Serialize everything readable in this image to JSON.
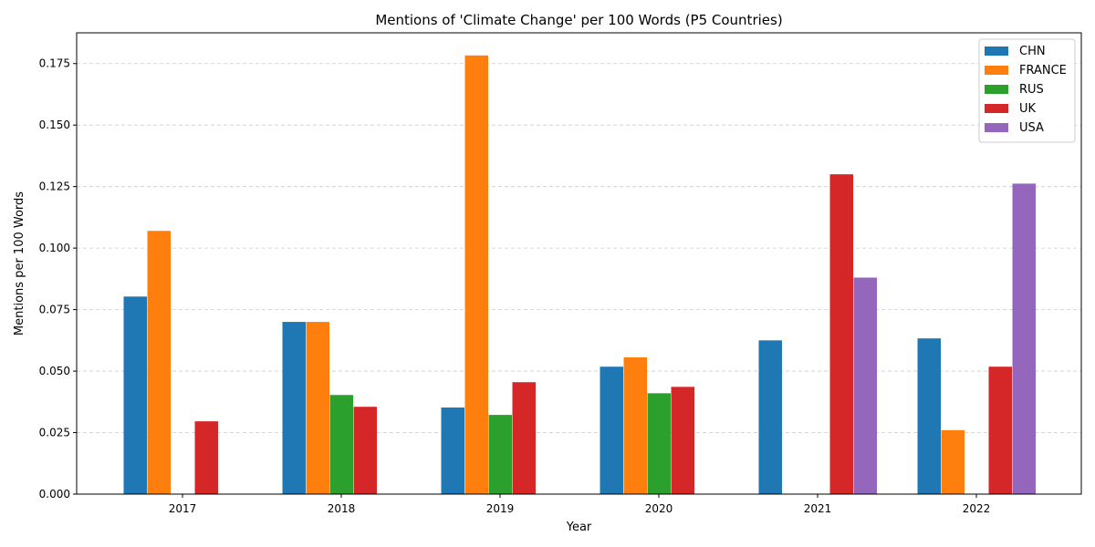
{
  "chart_data": {
    "type": "bar",
    "title": "Mentions of 'Climate Change' per 100 Words (P5 Countries)",
    "xlabel": "Year",
    "ylabel": "Mentions per 100 Words",
    "categories": [
      "2017",
      "2018",
      "2019",
      "2020",
      "2021",
      "2022"
    ],
    "ylim": [
      0,
      0.1875
    ],
    "yticks": [
      "0.000",
      "0.025",
      "0.050",
      "0.075",
      "0.100",
      "0.125",
      "0.150",
      "0.175"
    ],
    "grid": "y-dashed",
    "legend_position": "top-right",
    "series": [
      {
        "name": "CHN",
        "color": "#1f77b4",
        "values": [
          0.0803,
          0.07,
          0.0352,
          0.0518,
          0.0625,
          0.0633
        ]
      },
      {
        "name": "FRANCE",
        "color": "#ff7f0e",
        "values": [
          0.107,
          0.07,
          0.1783,
          0.0556,
          null,
          0.026
        ]
      },
      {
        "name": "RUS",
        "color": "#2ca02c",
        "values": [
          null,
          0.0403,
          0.0322,
          0.041,
          null,
          null
        ]
      },
      {
        "name": "UK",
        "color": "#d62728",
        "values": [
          0.0296,
          0.0355,
          0.0455,
          0.0436,
          0.13,
          0.0518
        ]
      },
      {
        "name": "USA",
        "color": "#9467bd",
        "values": [
          null,
          null,
          null,
          null,
          0.088,
          0.1262
        ]
      }
    ]
  }
}
